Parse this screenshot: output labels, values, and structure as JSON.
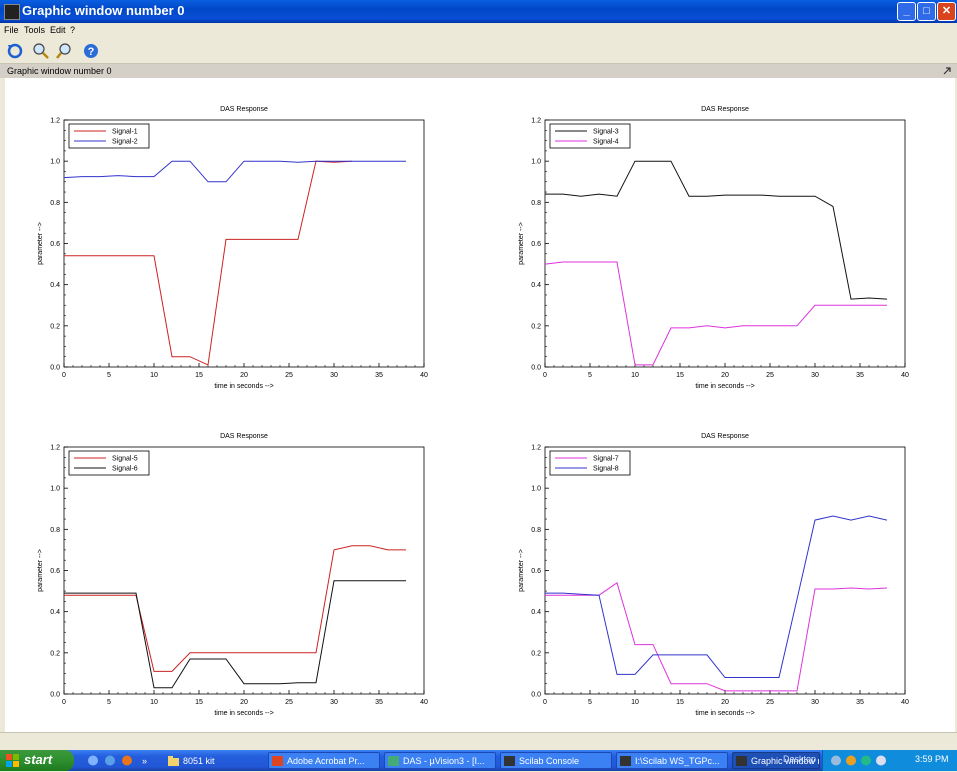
{
  "window": {
    "title": "Graphic window number 0",
    "subtitle": "Graphic window number 0"
  },
  "menu": {
    "file": "File",
    "tools": "Tools",
    "edit": "Edit",
    "help": "?"
  },
  "colors": {
    "red": "#cc2222",
    "blue": "#3333cc",
    "black": "#111111",
    "magenta": "#dd33dd"
  },
  "taskbar": {
    "start": "start",
    "items": [
      {
        "label": "8051 kit"
      },
      {
        "label": "Adobe Acrobat Pr..."
      },
      {
        "label": "DAS - µVision3 - [I..."
      },
      {
        "label": "Scilab Console"
      },
      {
        "label": "I:\\Scilab WS_TGPc..."
      },
      {
        "label": "Graphic window nu..."
      }
    ],
    "desktop": "Desktop",
    "clock": "3:59 PM"
  },
  "chart_data": [
    {
      "type": "line",
      "title": "DAS Response",
      "xlabel": "time in seconds -->",
      "ylabel": "parameter -->",
      "xlim": [
        0,
        40
      ],
      "ylim": [
        0,
        1.2
      ],
      "xticks": [
        "0",
        "5",
        "10",
        "15",
        "20",
        "25",
        "30",
        "35",
        "40"
      ],
      "yticks": [
        "0.0",
        "0.2",
        "0.4",
        "0.6",
        "0.8",
        "1.0",
        "1.2"
      ],
      "legend": "top-left",
      "series": [
        {
          "name": "Signal-1",
          "color": "#cc2222",
          "x": [
            0,
            2,
            4,
            6,
            8,
            10,
            12,
            14,
            16,
            18,
            20,
            22,
            24,
            26,
            28,
            30,
            32
          ],
          "y": [
            0.54,
            0.54,
            0.54,
            0.54,
            0.54,
            0.54,
            0.05,
            0.05,
            0.01,
            0.62,
            0.62,
            0.62,
            0.62,
            0.62,
            1.0,
            0.995,
            1.0
          ]
        },
        {
          "name": "Signal-2",
          "color": "#3333cc",
          "x": [
            0,
            2,
            4,
            6,
            8,
            10,
            12,
            14,
            16,
            18,
            20,
            22,
            24,
            26,
            28,
            30,
            32,
            34,
            36,
            38
          ],
          "y": [
            0.92,
            0.925,
            0.925,
            0.93,
            0.925,
            0.925,
            1.0,
            1.0,
            0.9,
            0.9,
            1.0,
            1.0,
            1.0,
            0.995,
            1.0,
            1.0,
            1.0,
            1.0,
            1.0,
            1.0
          ]
        }
      ]
    },
    {
      "type": "line",
      "title": "DAS Response",
      "xlabel": "time in seconds -->",
      "ylabel": "parameter -->",
      "xlim": [
        0,
        40
      ],
      "ylim": [
        0,
        1.2
      ],
      "xticks": [
        "0",
        "5",
        "10",
        "15",
        "20",
        "25",
        "30",
        "35",
        "40"
      ],
      "yticks": [
        "0.0",
        "0.2",
        "0.4",
        "0.6",
        "0.8",
        "1.0",
        "1.2"
      ],
      "legend": "top-left",
      "series": [
        {
          "name": "Signal-3",
          "color": "#111111",
          "x": [
            0,
            2,
            4,
            6,
            8,
            10,
            12,
            14,
            16,
            18,
            20,
            22,
            24,
            26,
            28,
            30,
            32,
            34,
            36,
            38
          ],
          "y": [
            0.84,
            0.84,
            0.83,
            0.84,
            0.83,
            1.0,
            1.0,
            1.0,
            0.83,
            0.83,
            0.835,
            0.835,
            0.835,
            0.83,
            0.83,
            0.83,
            0.78,
            0.33,
            0.335,
            0.33
          ]
        },
        {
          "name": "Signal-4",
          "color": "#dd33dd",
          "x": [
            0,
            2,
            4,
            6,
            8,
            10,
            12,
            14,
            16,
            18,
            20,
            22,
            24,
            26,
            28,
            30,
            32,
            34,
            36,
            38
          ],
          "y": [
            0.5,
            0.51,
            0.51,
            0.51,
            0.51,
            0.01,
            0.01,
            0.19,
            0.19,
            0.2,
            0.19,
            0.2,
            0.2,
            0.2,
            0.2,
            0.3,
            0.3,
            0.3,
            0.3,
            0.3
          ]
        }
      ]
    },
    {
      "type": "line",
      "title": "DAS Response",
      "xlabel": "time in seconds -->",
      "ylabel": "parameter -->",
      "xlim": [
        0,
        40
      ],
      "ylim": [
        0,
        1.2
      ],
      "xticks": [
        "0",
        "5",
        "10",
        "15",
        "20",
        "25",
        "30",
        "35",
        "40"
      ],
      "yticks": [
        "0.0",
        "0.2",
        "0.4",
        "0.6",
        "0.8",
        "1.0",
        "1.2"
      ],
      "legend": "top-left",
      "series": [
        {
          "name": "Signal-5",
          "color": "#cc2222",
          "x": [
            0,
            2,
            4,
            6,
            8,
            10,
            12,
            14,
            16,
            18,
            20,
            22,
            24,
            26,
            28,
            30,
            32,
            34,
            36,
            38
          ],
          "y": [
            0.48,
            0.48,
            0.48,
            0.48,
            0.48,
            0.11,
            0.11,
            0.2,
            0.2,
            0.2,
            0.2,
            0.2,
            0.2,
            0.2,
            0.2,
            0.7,
            0.72,
            0.72,
            0.7,
            0.7
          ]
        },
        {
          "name": "Signal-6",
          "color": "#111111",
          "x": [
            0,
            2,
            4,
            6,
            8,
            10,
            12,
            14,
            16,
            18,
            20,
            22,
            24,
            26,
            28,
            30,
            32,
            34,
            36,
            38
          ],
          "y": [
            0.49,
            0.49,
            0.49,
            0.49,
            0.49,
            0.03,
            0.03,
            0.17,
            0.17,
            0.17,
            0.05,
            0.05,
            0.05,
            0.055,
            0.055,
            0.55,
            0.55,
            0.55,
            0.55,
            0.55
          ]
        }
      ]
    },
    {
      "type": "line",
      "title": "DAS Response",
      "xlabel": "time in seconds -->",
      "ylabel": "parameter -->",
      "xlim": [
        0,
        40
      ],
      "ylim": [
        0,
        1.2
      ],
      "xticks": [
        "0",
        "5",
        "10",
        "15",
        "20",
        "25",
        "30",
        "35",
        "40"
      ],
      "yticks": [
        "0.0",
        "0.2",
        "0.4",
        "0.6",
        "0.8",
        "1.0",
        "1.2"
      ],
      "legend": "top-left",
      "series": [
        {
          "name": "Signal-7",
          "color": "#dd33dd",
          "x": [
            0,
            2,
            4,
            6,
            8,
            10,
            12,
            14,
            16,
            18,
            20,
            22,
            24,
            26,
            28,
            30,
            32,
            34,
            36,
            38
          ],
          "y": [
            0.48,
            0.48,
            0.48,
            0.48,
            0.54,
            0.24,
            0.24,
            0.05,
            0.05,
            0.05,
            0.015,
            0.015,
            0.015,
            0.015,
            0.015,
            0.51,
            0.51,
            0.515,
            0.51,
            0.515
          ]
        },
        {
          "name": "Signal-8",
          "color": "#3333cc",
          "x": [
            0,
            2,
            4,
            6,
            8,
            10,
            12,
            14,
            16,
            18,
            20,
            22,
            24,
            26,
            28,
            30,
            32,
            34,
            36,
            38
          ],
          "y": [
            0.49,
            0.49,
            0.485,
            0.48,
            0.095,
            0.095,
            0.19,
            0.19,
            0.19,
            0.19,
            0.08,
            0.08,
            0.08,
            0.08,
            0.46,
            0.845,
            0.865,
            0.845,
            0.865,
            0.845
          ]
        }
      ]
    }
  ]
}
